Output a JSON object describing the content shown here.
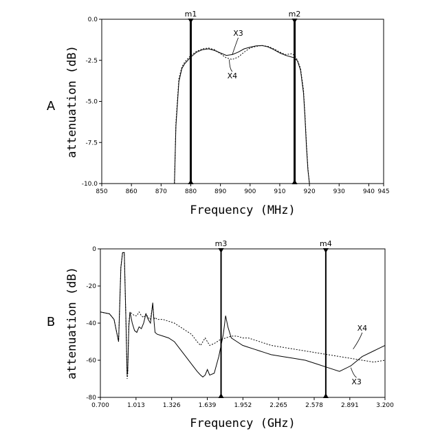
{
  "chart_data": [
    {
      "type": "line",
      "panel_label": "A",
      "xlabel": "Frequency (MHz)",
      "ylabel": "attenuation (dB)",
      "xlim": [
        850,
        945
      ],
      "ylim": [
        -10.0,
        0.0
      ],
      "x_ticks": [
        "850",
        "860",
        "870",
        "880",
        "890",
        "900",
        "910",
        "920",
        "930",
        "940",
        "945"
      ],
      "x_tick_values": [
        850,
        860,
        870,
        880,
        890,
        900,
        910,
        920,
        930,
        940,
        945
      ],
      "y_ticks": [
        "0.0",
        "-2.5",
        "-5.0",
        "-7.5",
        "-10.0"
      ],
      "y_tick_values": [
        0,
        -2.5,
        -5,
        -7.5,
        -10
      ],
      "grid": false,
      "markers": [
        {
          "label": "m1",
          "x": 880
        },
        {
          "label": "m2",
          "x": 915
        }
      ],
      "series": [
        {
          "name": "X3",
          "style": "solid",
          "x": [
            874.5,
            875,
            876,
            877,
            878,
            879,
            880,
            882,
            884,
            886,
            888,
            890,
            892,
            894,
            896,
            898,
            900,
            902,
            904,
            906,
            908,
            910,
            912,
            914,
            915,
            916,
            917,
            918,
            918.5,
            919,
            919.5,
            920
          ],
          "y": [
            -10,
            -6.5,
            -3.8,
            -3.0,
            -2.7,
            -2.5,
            -2.3,
            -2.0,
            -1.85,
            -1.8,
            -1.9,
            -2.05,
            -2.2,
            -2.15,
            -2.0,
            -1.8,
            -1.7,
            -1.62,
            -1.6,
            -1.68,
            -1.85,
            -2.05,
            -2.2,
            -2.3,
            -2.35,
            -2.55,
            -3.1,
            -4.5,
            -6,
            -7.8,
            -9.2,
            -10
          ]
        },
        {
          "name": "X4",
          "style": "dotted",
          "x": [
            874.5,
            875,
            876,
            877,
            878,
            879,
            880,
            882,
            884,
            886,
            888,
            890,
            892,
            894,
            896,
            898,
            900,
            902,
            904,
            906,
            908,
            910,
            912,
            914,
            915,
            916,
            917,
            918,
            918.5,
            919,
            919.5,
            920
          ],
          "y": [
            -10,
            -6.3,
            -3.6,
            -2.9,
            -2.6,
            -2.4,
            -2.2,
            -1.95,
            -1.8,
            -1.75,
            -1.85,
            -2.1,
            -2.35,
            -2.45,
            -2.3,
            -2.0,
            -1.75,
            -1.65,
            -1.6,
            -1.65,
            -1.8,
            -2.0,
            -2.15,
            -2.1,
            -2.2,
            -2.5,
            -3.0,
            -4.3,
            -5.8,
            -7.6,
            -9.1,
            -10
          ]
        }
      ],
      "annotations": [
        {
          "text": "X3",
          "x": 896,
          "y": -1.0,
          "target_x": 894,
          "target_y": -2.15
        },
        {
          "text": "X4",
          "x": 894,
          "y": -3.6,
          "target_x": 893,
          "target_y": -2.45
        }
      ]
    },
    {
      "type": "line",
      "panel_label": "B",
      "xlabel": "Frequency (GHz)",
      "ylabel": "attenuation (dB)",
      "xlim": [
        0.7,
        3.2
      ],
      "ylim": [
        -80,
        0
      ],
      "x_ticks": [
        "0.700",
        "1.013",
        "1.326",
        "1.639",
        "1.952",
        "2.265",
        "2.578",
        "2.891",
        "3.200"
      ],
      "x_tick_values": [
        0.7,
        1.013,
        1.326,
        1.639,
        1.952,
        2.265,
        2.578,
        2.891,
        3.2
      ],
      "y_ticks": [
        "0",
        "-20",
        "-40",
        "-60",
        "-80"
      ],
      "y_tick_values": [
        0,
        -20,
        -40,
        -60,
        -80
      ],
      "grid": false,
      "markers": [
        {
          "label": "m3",
          "x": 1.76
        },
        {
          "label": "m4",
          "x": 2.68
        }
      ],
      "series": [
        {
          "name": "X3",
          "style": "solid",
          "x": [
            0.7,
            0.78,
            0.82,
            0.84,
            0.86,
            0.88,
            0.895,
            0.91,
            0.925,
            0.935,
            0.94,
            0.95,
            0.96,
            0.98,
            1.0,
            1.02,
            1.04,
            1.06,
            1.08,
            1.1,
            1.12,
            1.14,
            1.16,
            1.17,
            1.18,
            1.2,
            1.25,
            1.3,
            1.35,
            1.4,
            1.45,
            1.5,
            1.55,
            1.58,
            1.6,
            1.62,
            1.64,
            1.66,
            1.7,
            1.74,
            1.78,
            1.8,
            1.82,
            1.85,
            1.9,
            1.95,
            2.0,
            2.05,
            2.1,
            2.15,
            2.2,
            2.3,
            2.4,
            2.5,
            2.6,
            2.7,
            2.8,
            2.9,
            3.0,
            3.1,
            3.2
          ],
          "y": [
            -34,
            -35,
            -38,
            -44,
            -50,
            -10,
            -2,
            -2,
            -40,
            -68,
            -66,
            -42,
            -34,
            -40,
            -44,
            -45,
            -42,
            -43,
            -40,
            -35,
            -38,
            -40,
            -29,
            -38,
            -45,
            -46,
            -47,
            -48,
            -50,
            -54,
            -58,
            -62,
            -66,
            -68,
            -69,
            -68,
            -65,
            -68,
            -67,
            -58,
            -46,
            -36,
            -42,
            -48,
            -50,
            -52,
            -53,
            -54,
            -55,
            -56,
            -57,
            -58,
            -59,
            -60,
            -62,
            -64,
            -66,
            -63,
            -58,
            -55,
            -52
          ]
        },
        {
          "name": "X4",
          "style": "dotted",
          "x": [
            0.7,
            0.78,
            0.82,
            0.84,
            0.86,
            0.88,
            0.895,
            0.91,
            0.925,
            0.935,
            0.94,
            0.95,
            0.96,
            0.98,
            1.0,
            1.02,
            1.04,
            1.06,
            1.08,
            1.1,
            1.12,
            1.14,
            1.16,
            1.17,
            1.18,
            1.2,
            1.25,
            1.3,
            1.35,
            1.4,
            1.45,
            1.5,
            1.55,
            1.58,
            1.6,
            1.62,
            1.64,
            1.66,
            1.7,
            1.75,
            1.8,
            1.85,
            1.9,
            1.95,
            2.0,
            2.05,
            2.1,
            2.15,
            2.2,
            2.3,
            2.4,
            2.5,
            2.6,
            2.7,
            2.8,
            2.9,
            3.0,
            3.1,
            3.2
          ],
          "y": [
            -34,
            -35,
            -38,
            -44,
            -50,
            -10,
            -2,
            -2,
            -40,
            -70,
            -68,
            -40,
            -34,
            -35,
            -36,
            -36,
            -34,
            -36,
            -37,
            -35,
            -37,
            -38,
            -30,
            -38,
            -37,
            -38,
            -38,
            -39,
            -40,
            -42,
            -44,
            -46,
            -50,
            -52,
            -50,
            -48,
            -50,
            -52,
            -51,
            -49,
            -48,
            -47,
            -47,
            -48,
            -48,
            -49,
            -50,
            -51,
            -52,
            -53,
            -54,
            -55,
            -56,
            -57,
            -58,
            -59,
            -60,
            -61,
            -60
          ]
        }
      ],
      "annotations": [
        {
          "text": "X4",
          "x": 3.0,
          "y": -44,
          "target_x": 2.92,
          "target_y": -54
        },
        {
          "text": "X3",
          "x": 2.95,
          "y": -73,
          "target_x": 2.9,
          "target_y": -64
        }
      ]
    }
  ]
}
